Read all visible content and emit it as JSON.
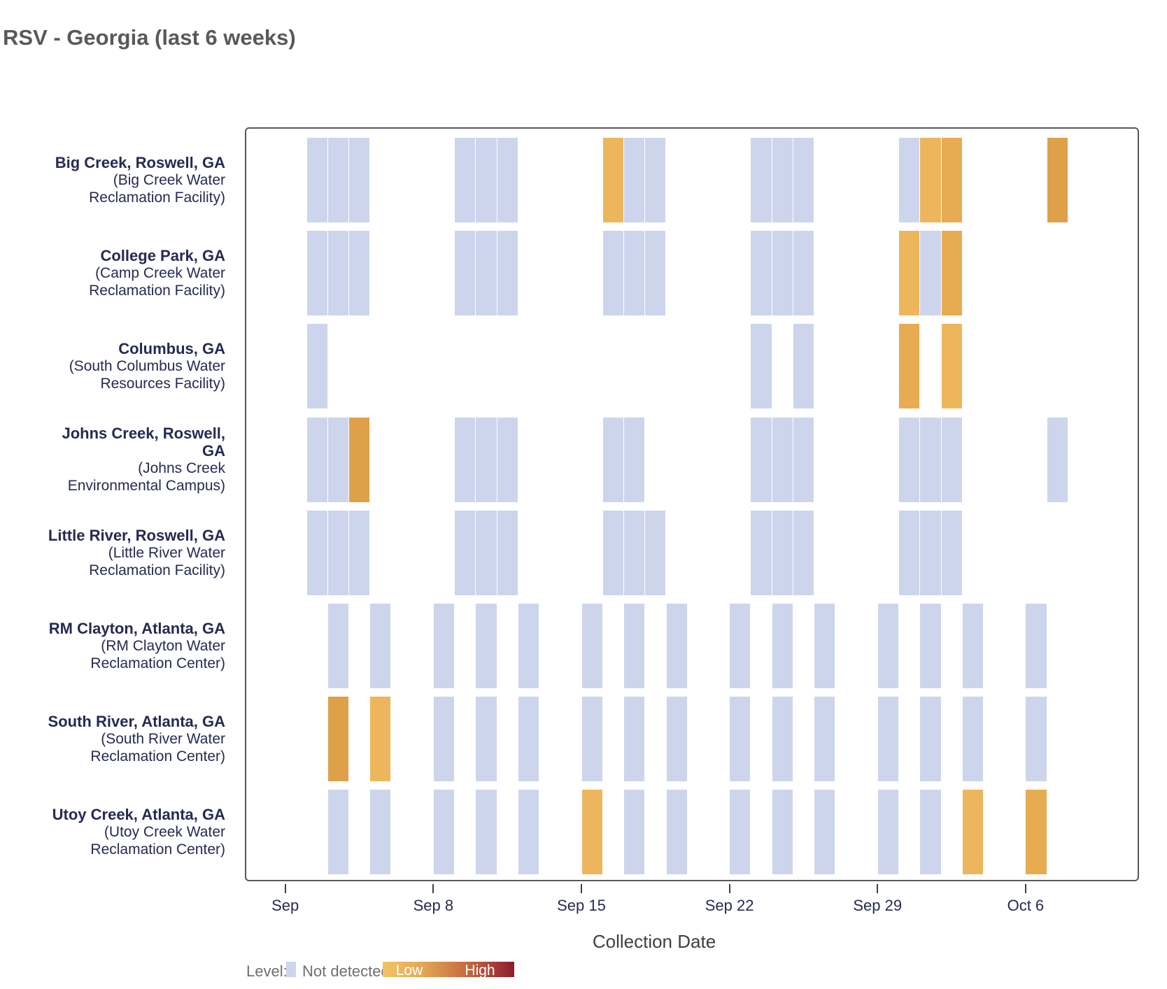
{
  "title": "RSV - Georgia (last 6 weeks)",
  "chart_data": {
    "type": "heatmap",
    "title": "RSV - Georgia (last 6 weeks)",
    "xlabel": "Collection Date",
    "x_ticks": [
      "Sep",
      "Sep 8",
      "Sep 15",
      "Sep 22",
      "Sep 29",
      "Oct 6"
    ],
    "x_tick_day_offsets": [
      0,
      7,
      14,
      21,
      28,
      35
    ],
    "grid": false,
    "legend_position": "bottom",
    "legend": {
      "label": "Level:",
      "not_detected": "Not detected",
      "low": "Low",
      "high": "High"
    },
    "levels": {
      "nd": {
        "label": "Not detected",
        "color": "#CDD5ED"
      },
      "low1": {
        "label": "Low",
        "color": "#EDB65C"
      },
      "low2": {
        "label": "Low",
        "color": "#E7AB52"
      },
      "low3": {
        "label": "Low",
        "color": "#DEA049"
      }
    },
    "rows": [
      {
        "name_lines": [
          "Big Creek, Roswell, GA"
        ],
        "facility_lines": [
          "(Big Creek Water",
          "Reclamation Facility)"
        ],
        "tiles": [
          {
            "date": "Sep 2",
            "level": "nd"
          },
          {
            "date": "Sep 3",
            "level": "nd"
          },
          {
            "date": "Sep 4",
            "level": "nd"
          },
          {
            "date": "Sep 9",
            "level": "nd"
          },
          {
            "date": "Sep 10",
            "level": "nd"
          },
          {
            "date": "Sep 11",
            "level": "nd"
          },
          {
            "date": "Sep 16",
            "level": "low1"
          },
          {
            "date": "Sep 17",
            "level": "nd"
          },
          {
            "date": "Sep 18",
            "level": "nd"
          },
          {
            "date": "Sep 23",
            "level": "nd"
          },
          {
            "date": "Sep 24",
            "level": "nd"
          },
          {
            "date": "Sep 25",
            "level": "nd"
          },
          {
            "date": "Sep 30",
            "level": "nd"
          },
          {
            "date": "Oct 1",
            "level": "low1"
          },
          {
            "date": "Oct 2",
            "level": "low2"
          },
          {
            "date": "Oct 7",
            "level": "low3"
          }
        ]
      },
      {
        "name_lines": [
          "College Park, GA"
        ],
        "facility_lines": [
          "(Camp Creek Water",
          "Reclamation Facility)"
        ],
        "tiles": [
          {
            "date": "Sep 2",
            "level": "nd"
          },
          {
            "date": "Sep 3",
            "level": "nd"
          },
          {
            "date": "Sep 4",
            "level": "nd"
          },
          {
            "date": "Sep 9",
            "level": "nd"
          },
          {
            "date": "Sep 10",
            "level": "nd"
          },
          {
            "date": "Sep 11",
            "level": "nd"
          },
          {
            "date": "Sep 16",
            "level": "nd"
          },
          {
            "date": "Sep 17",
            "level": "nd"
          },
          {
            "date": "Sep 18",
            "level": "nd"
          },
          {
            "date": "Sep 23",
            "level": "nd"
          },
          {
            "date": "Sep 24",
            "level": "nd"
          },
          {
            "date": "Sep 25",
            "level": "nd"
          },
          {
            "date": "Sep 30",
            "level": "low1"
          },
          {
            "date": "Oct 1",
            "level": "nd"
          },
          {
            "date": "Oct 2",
            "level": "low2"
          }
        ]
      },
      {
        "name_lines": [
          "Columbus, GA"
        ],
        "facility_lines": [
          "(South Columbus Water",
          "Resources Facility)"
        ],
        "tiles": [
          {
            "date": "Sep 2",
            "level": "nd"
          },
          {
            "date": "Sep 23",
            "level": "nd"
          },
          {
            "date": "Sep 25",
            "level": "nd"
          },
          {
            "date": "Sep 30",
            "level": "low2"
          },
          {
            "date": "Oct 2",
            "level": "low1"
          }
        ]
      },
      {
        "name_lines": [
          "Johns Creek, Roswell,",
          "GA"
        ],
        "facility_lines": [
          "(Johns Creek",
          "Environmental Campus)"
        ],
        "tiles": [
          {
            "date": "Sep 2",
            "level": "nd"
          },
          {
            "date": "Sep 3",
            "level": "nd"
          },
          {
            "date": "Sep 4",
            "level": "low3"
          },
          {
            "date": "Sep 9",
            "level": "nd"
          },
          {
            "date": "Sep 10",
            "level": "nd"
          },
          {
            "date": "Sep 11",
            "level": "nd"
          },
          {
            "date": "Sep 16",
            "level": "nd"
          },
          {
            "date": "Sep 17",
            "level": "nd"
          },
          {
            "date": "Sep 23",
            "level": "nd"
          },
          {
            "date": "Sep 24",
            "level": "nd"
          },
          {
            "date": "Sep 25",
            "level": "nd"
          },
          {
            "date": "Sep 30",
            "level": "nd"
          },
          {
            "date": "Oct 1",
            "level": "nd"
          },
          {
            "date": "Oct 2",
            "level": "nd"
          },
          {
            "date": "Oct 7",
            "level": "nd"
          }
        ]
      },
      {
        "name_lines": [
          "Little River, Roswell, GA"
        ],
        "facility_lines": [
          "(Little River Water",
          "Reclamation Facility)"
        ],
        "tiles": [
          {
            "date": "Sep 2",
            "level": "nd"
          },
          {
            "date": "Sep 3",
            "level": "nd"
          },
          {
            "date": "Sep 4",
            "level": "nd"
          },
          {
            "date": "Sep 9",
            "level": "nd"
          },
          {
            "date": "Sep 10",
            "level": "nd"
          },
          {
            "date": "Sep 11",
            "level": "nd"
          },
          {
            "date": "Sep 16",
            "level": "nd"
          },
          {
            "date": "Sep 17",
            "level": "nd"
          },
          {
            "date": "Sep 18",
            "level": "nd"
          },
          {
            "date": "Sep 23",
            "level": "nd"
          },
          {
            "date": "Sep 24",
            "level": "nd"
          },
          {
            "date": "Sep 25",
            "level": "nd"
          },
          {
            "date": "Sep 30",
            "level": "nd"
          },
          {
            "date": "Oct 1",
            "level": "nd"
          },
          {
            "date": "Oct 2",
            "level": "nd"
          }
        ]
      },
      {
        "name_lines": [
          "RM Clayton, Atlanta, GA"
        ],
        "facility_lines": [
          "(RM Clayton Water",
          "Reclamation Center)"
        ],
        "tiles": [
          {
            "date": "Sep 3",
            "level": "nd"
          },
          {
            "date": "Sep 5",
            "level": "nd"
          },
          {
            "date": "Sep 8",
            "level": "nd"
          },
          {
            "date": "Sep 10",
            "level": "nd"
          },
          {
            "date": "Sep 12",
            "level": "nd"
          },
          {
            "date": "Sep 15",
            "level": "nd"
          },
          {
            "date": "Sep 17",
            "level": "nd"
          },
          {
            "date": "Sep 19",
            "level": "nd"
          },
          {
            "date": "Sep 22",
            "level": "nd"
          },
          {
            "date": "Sep 24",
            "level": "nd"
          },
          {
            "date": "Sep 26",
            "level": "nd"
          },
          {
            "date": "Sep 29",
            "level": "nd"
          },
          {
            "date": "Oct 1",
            "level": "nd"
          },
          {
            "date": "Oct 3",
            "level": "nd"
          },
          {
            "date": "Oct 6",
            "level": "nd"
          }
        ]
      },
      {
        "name_lines": [
          "South River, Atlanta, GA"
        ],
        "facility_lines": [
          "(South River Water",
          "Reclamation Center)"
        ],
        "tiles": [
          {
            "date": "Sep 3",
            "level": "low3"
          },
          {
            "date": "Sep 5",
            "level": "low1"
          },
          {
            "date": "Sep 8",
            "level": "nd"
          },
          {
            "date": "Sep 10",
            "level": "nd"
          },
          {
            "date": "Sep 12",
            "level": "nd"
          },
          {
            "date": "Sep 15",
            "level": "nd"
          },
          {
            "date": "Sep 17",
            "level": "nd"
          },
          {
            "date": "Sep 19",
            "level": "nd"
          },
          {
            "date": "Sep 22",
            "level": "nd"
          },
          {
            "date": "Sep 24",
            "level": "nd"
          },
          {
            "date": "Sep 26",
            "level": "nd"
          },
          {
            "date": "Sep 29",
            "level": "nd"
          },
          {
            "date": "Oct 1",
            "level": "nd"
          },
          {
            "date": "Oct 3",
            "level": "nd"
          },
          {
            "date": "Oct 6",
            "level": "nd"
          }
        ]
      },
      {
        "name_lines": [
          "Utoy Creek, Atlanta, GA"
        ],
        "facility_lines": [
          "(Utoy Creek Water",
          "Reclamation Center)"
        ],
        "tiles": [
          {
            "date": "Sep 3",
            "level": "nd"
          },
          {
            "date": "Sep 5",
            "level": "nd"
          },
          {
            "date": "Sep 8",
            "level": "nd"
          },
          {
            "date": "Sep 10",
            "level": "nd"
          },
          {
            "date": "Sep 12",
            "level": "nd"
          },
          {
            "date": "Sep 15",
            "level": "low1"
          },
          {
            "date": "Sep 17",
            "level": "nd"
          },
          {
            "date": "Sep 19",
            "level": "nd"
          },
          {
            "date": "Sep 22",
            "level": "nd"
          },
          {
            "date": "Sep 24",
            "level": "nd"
          },
          {
            "date": "Sep 26",
            "level": "nd"
          },
          {
            "date": "Sep 29",
            "level": "nd"
          },
          {
            "date": "Oct 1",
            "level": "nd"
          },
          {
            "date": "Oct 3",
            "level": "low1"
          },
          {
            "date": "Oct 6",
            "level": "low2"
          }
        ]
      }
    ]
  }
}
